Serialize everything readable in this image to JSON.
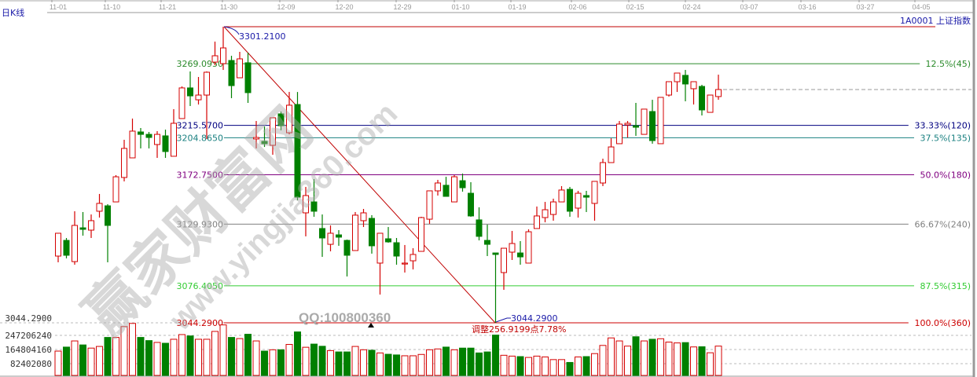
{
  "header": {
    "period": "日K线",
    "symbol": "1A0001 上证指数"
  },
  "colors": {
    "up": "#d40000",
    "down": "#008000",
    "annotation": "#1a1aa8"
  },
  "chart_data": [
    {
      "type": "candlestick",
      "x_ticks": [
        "11-01",
        "11-10",
        "11-21",
        "11-30",
        "12-09",
        "12-20",
        "12-29",
        "01-10",
        "01-19",
        "02-06",
        "02-15",
        "02-24",
        "03-07",
        "03-16",
        "03-27",
        "04-05"
      ],
      "ohlc_fields": [
        "open",
        "close",
        "high",
        "low"
      ],
      "candles": [
        [
          3102.2,
          3122.0,
          3122.0,
          3096.8
        ],
        [
          3115.8,
          3102.9,
          3117.9,
          3100.2
        ],
        [
          3097.4,
          3128.8,
          3141.1,
          3094.7
        ],
        [
          3126.7,
          3125.4,
          3140.4,
          3119.9
        ],
        [
          3124.7,
          3132.9,
          3138.3,
          3117.9
        ],
        [
          3141.1,
          3147.9,
          3156.1,
          3135.6
        ],
        [
          3145.8,
          3128.8,
          3147.2,
          3096.8
        ],
        [
          3149.2,
          3171.0,
          3172.4,
          3149.2
        ],
        [
          3170.4,
          3195.6,
          3203.1,
          3167.0
        ],
        [
          3187.4,
          3210.6,
          3221.5,
          3187.4
        ],
        [
          3209.9,
          3207.8,
          3213.3,
          3195.6
        ],
        [
          3207.8,
          3205.1,
          3209.9,
          3195.6
        ],
        [
          3199.0,
          3207.8,
          3210.6,
          3187.4
        ],
        [
          3206.5,
          3192.9,
          3211.9,
          3187.4
        ],
        [
          3188.8,
          3217.4,
          3229.7,
          3188.8
        ],
        [
          3221.5,
          3248.1,
          3249.4,
          3221.5
        ],
        [
          3248.1,
          3241.2,
          3262.4,
          3232.4
        ],
        [
          3237.8,
          3241.9,
          3257.6,
          3233.7
        ],
        [
          3241.9,
          3261.7,
          3262.4,
          3203.8
        ],
        [
          3270.5,
          3276.0,
          3288.3,
          3267.8
        ],
        [
          3269.2,
          3282.8,
          3301.2,
          3263.7
        ],
        [
          3271.9,
          3250.1,
          3276.0,
          3239.2
        ],
        [
          3256.9,
          3273.3,
          3279.4,
          3256.9
        ],
        [
          3269.9,
          3244.0,
          3278.7,
          3235.1
        ],
        [
          3203.8,
          3205.1,
          3219.4,
          3195.6
        ],
        [
          3201.7,
          3199.7,
          3214.7,
          3196.9
        ],
        [
          3198.3,
          3222.2,
          3222.2,
          3190.1
        ],
        [
          3225.6,
          3215.3,
          3227.6,
          3211.3
        ],
        [
          3209.2,
          3233.1,
          3244.6,
          3207.8
        ],
        [
          3233.7,
          3153.3,
          3244.6,
          3150.6
        ],
        [
          3139.7,
          3154.7,
          3162.2,
          3119.3
        ],
        [
          3149.2,
          3141.1,
          3169.0,
          3136.3
        ],
        [
          3126.1,
          3117.9,
          3138.3,
          3101.5
        ],
        [
          3112.4,
          3122.0,
          3128.8,
          3106.3
        ],
        [
          3120.6,
          3118.6,
          3124.7,
          3111.1
        ],
        [
          3115.8,
          3102.9,
          3116.5,
          3084.5
        ],
        [
          3107.0,
          3137.7,
          3140.4,
          3107.0
        ],
        [
          3132.9,
          3139.7,
          3143.1,
          3127.4
        ],
        [
          3134.9,
          3111.1,
          3137.7,
          3104.3
        ],
        [
          3096.1,
          3122.0,
          3122.0,
          3068.8
        ],
        [
          3117.2,
          3114.5,
          3127.4,
          3113.8
        ],
        [
          3113.8,
          3102.2,
          3117.9,
          3094.7
        ],
        [
          3095.4,
          3096.1,
          3111.8,
          3087.9
        ],
        [
          3098.1,
          3103.6,
          3109.0,
          3090.6
        ],
        [
          3106.3,
          3135.6,
          3136.3,
          3106.3
        ],
        [
          3134.2,
          3158.8,
          3158.8,
          3130.2
        ],
        [
          3158.8,
          3165.6,
          3168.3,
          3154.7
        ],
        [
          3163.6,
          3154.0,
          3171.0,
          3154.0
        ],
        [
          3149.2,
          3171.0,
          3172.4,
          3149.2
        ],
        [
          3167.6,
          3161.5,
          3173.8,
          3158.1
        ],
        [
          3156.7,
          3137.0,
          3166.3,
          3136.3
        ],
        [
          3133.6,
          3119.3,
          3144.5,
          3115.8
        ],
        [
          3115.8,
          3112.4,
          3129.5,
          3102.2
        ],
        [
          3104.9,
          3103.6,
          3104.9,
          3044.29
        ],
        [
          3087.9,
          3109.0,
          3109.0,
          3072.9
        ],
        [
          3105.6,
          3113.1,
          3124.0,
          3098.8
        ],
        [
          3104.9,
          3101.5,
          3115.2,
          3094.7
        ],
        [
          3096.1,
          3123.3,
          3125.4,
          3096.1
        ],
        [
          3126.1,
          3137.0,
          3145.2,
          3126.1
        ],
        [
          3135.6,
          3142.4,
          3149.2,
          3131.5
        ],
        [
          3138.3,
          3149.2,
          3152.0,
          3132.9
        ],
        [
          3149.2,
          3159.5,
          3162.9,
          3149.2
        ],
        [
          3160.1,
          3141.1,
          3162.2,
          3136.3
        ],
        [
          3143.8,
          3156.7,
          3158.8,
          3135.6
        ],
        [
          3154.7,
          3153.3,
          3158.8,
          3140.4
        ],
        [
          3147.9,
          3167.0,
          3167.0,
          3132.9
        ],
        [
          3165.6,
          3183.3,
          3186.7,
          3162.9
        ],
        [
          3183.3,
          3196.9,
          3204.4,
          3183.3
        ],
        [
          3199.7,
          3216.7,
          3219.4,
          3199.7
        ],
        [
          3216.0,
          3217.4,
          3219.4,
          3205.1
        ],
        [
          3215.3,
          3214.0,
          3235.1,
          3206.5
        ],
        [
          3207.8,
          3229.7,
          3229.7,
          3207.8
        ],
        [
          3227.6,
          3202.4,
          3237.8,
          3199.7
        ],
        [
          3199.7,
          3239.9,
          3239.9,
          3199.7
        ],
        [
          3241.9,
          3253.5,
          3253.5,
          3240.6
        ],
        [
          3253.5,
          3261.0,
          3261.0,
          3244.6
        ],
        [
          3259.0,
          3251.5,
          3263.7,
          3236.5
        ],
        [
          3247.4,
          3253.5,
          3253.5,
          3233.7
        ],
        [
          3249.4,
          3229.0,
          3250.8,
          3224.2
        ],
        [
          3226.9,
          3241.9,
          3241.9,
          3226.9
        ],
        [
          3240.6,
          3246.7,
          3259.6,
          3237.8
        ]
      ],
      "y_range": [
        3044.29,
        3301.21
      ],
      "high_label": "3301.2100",
      "low_label": "3044.2900",
      "adjustment_label": "调整256.9199点7.78%",
      "fibonacci": [
        {
          "price": 3301.21,
          "left": "",
          "right": "",
          "color": "#c00000"
        },
        {
          "price": 3269.095,
          "left": "3269.0950",
          "right": "12.5%(45)",
          "color": "#2a8a2a"
        },
        {
          "price": 3215.57,
          "left": "3215.5700",
          "right": "33.33%(120)",
          "color": "#000080"
        },
        {
          "price": 3204.865,
          "left": "3204.8650",
          "right": "37.5%(135)",
          "color": "#1a8080"
        },
        {
          "price": 3172.75,
          "left": "3172.7500",
          "right": "50.0%(180)",
          "color": "#800080"
        },
        {
          "price": 3129.93,
          "left": "3129.9300",
          "right": "66.67%(240)",
          "color": "#808080"
        },
        {
          "price": 3076.405,
          "left": "3076.4050",
          "right": "87.5%(315)",
          "color": "#33cc33"
        },
        {
          "price": 3044.29,
          "left": "3044.2900",
          "right": "100.0%(360)",
          "color": "#cc0000"
        }
      ]
    },
    {
      "type": "bar",
      "y_ticks": [
        "3044.2900",
        "247206240",
        "164804160",
        "82402080"
      ],
      "volumes": [
        160000000,
        184000000,
        221000000,
        197000000,
        178000000,
        188000000,
        242000000,
        242000000,
        307000000,
        326000000,
        242000000,
        223000000,
        212000000,
        207000000,
        231000000,
        259000000,
        251000000,
        231000000,
        231000000,
        278000000,
        317000000,
        242000000,
        235000000,
        261000000,
        221000000,
        160000000,
        168000000,
        168000000,
        200000000,
        275000000,
        183000000,
        202000000,
        189000000,
        163000000,
        155000000,
        155000000,
        188000000,
        168000000,
        165000000,
        149000000,
        141000000,
        137000000,
        132000000,
        132000000,
        140000000,
        168000000,
        173000000,
        184000000,
        168000000,
        178000000,
        178000000,
        149000000,
        155000000,
        256000000,
        135000000,
        130000000,
        127000000,
        122000000,
        130000000,
        125000000,
        109000000,
        109000000,
        92000000,
        125000000,
        127000000,
        145000000,
        194000000,
        239000000,
        221000000,
        190000000,
        246000000,
        221000000,
        231000000,
        234000000,
        214000000,
        209000000,
        211000000,
        185000000,
        186000000,
        150000000,
        190000000
      ]
    }
  ],
  "watermark": {
    "brand": "赢家财富网",
    "site": "www.yingjia360.com",
    "qq": "QQ:100800360"
  }
}
